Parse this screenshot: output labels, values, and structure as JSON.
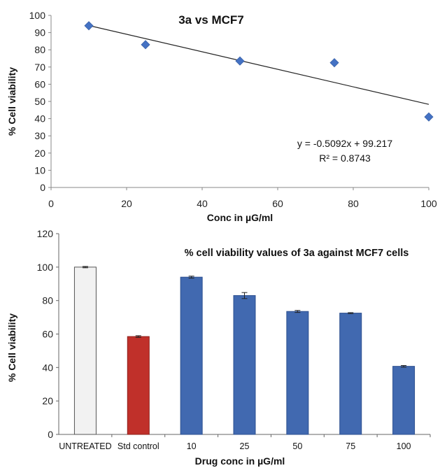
{
  "chart_data": [
    {
      "type": "scatter",
      "title": "3a vs MCF7",
      "xlabel": "Conc in µG/ml",
      "ylabel": "% Cell viability",
      "xlim": [
        0,
        100
      ],
      "ylim": [
        0,
        100
      ],
      "x_ticks": [
        "0",
        "20",
        "40",
        "60",
        "80",
        "100"
      ],
      "y_ticks": [
        "0",
        "10",
        "20",
        "30",
        "40",
        "50",
        "60",
        "70",
        "80",
        "90",
        "100"
      ],
      "x": [
        10,
        25,
        50,
        75,
        100
      ],
      "y": [
        94,
        83,
        73.5,
        72.5,
        41
      ],
      "marker_color": "#4472C4",
      "trendline": {
        "slope": -0.5092,
        "intercept": 99.217,
        "equation_label": "y = -0.5092x + 99.217",
        "r2_label": "R² = 0.8743"
      },
      "grid": false
    },
    {
      "type": "bar",
      "title": "% cell viability values of 3a against MCF7 cells",
      "xlabel": "Drug conc in µG/ml",
      "ylabel": "% Cell viability",
      "ylim": [
        0,
        120
      ],
      "y_ticks": [
        "0",
        "20",
        "40",
        "60",
        "80",
        "100",
        "120"
      ],
      "categories": [
        "UNTREATED",
        "Std control",
        "10",
        "25",
        "50",
        "75",
        "100"
      ],
      "values": [
        100,
        58.5,
        94,
        83,
        73.5,
        72.5,
        40.7
      ],
      "errors": [
        0.4,
        0.5,
        0.6,
        1.8,
        0.6,
        0.3,
        0.5
      ],
      "colors": [
        "#F2F2F2",
        "#C0302A",
        "#4169B0",
        "#4169B0",
        "#4169B0",
        "#4169B0",
        "#4169B0"
      ],
      "grid": false
    }
  ]
}
